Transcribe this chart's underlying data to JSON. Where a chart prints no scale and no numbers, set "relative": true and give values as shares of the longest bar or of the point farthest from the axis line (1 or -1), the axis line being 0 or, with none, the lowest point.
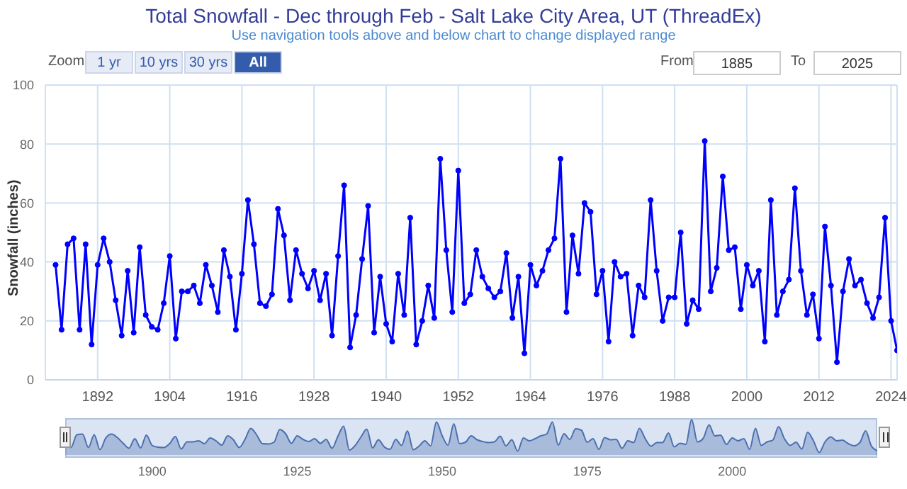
{
  "chart_data": [
    {
      "type": "line",
      "title": "Total Snowfall - Dec through Feb - Salt Lake City Area, UT (ThreadEx)",
      "subtitle": "Use navigation tools above and below chart to change displayed range",
      "ylabel": "Snowfall (inches)",
      "annotations": [
        "Zoom",
        "1 yr",
        "10 yrs",
        "30 yrs",
        "All",
        "From",
        "1885",
        "To",
        "2025"
      ],
      "x": [
        1885,
        1886,
        1887,
        1888,
        1889,
        1890,
        1891,
        1892,
        1893,
        1894,
        1895,
        1896,
        1897,
        1898,
        1899,
        1900,
        1901,
        1902,
        1903,
        1904,
        1905,
        1906,
        1907,
        1908,
        1909,
        1910,
        1911,
        1912,
        1913,
        1914,
        1915,
        1916,
        1917,
        1918,
        1919,
        1920,
        1921,
        1922,
        1923,
        1924,
        1925,
        1926,
        1927,
        1928,
        1929,
        1930,
        1931,
        1932,
        1933,
        1934,
        1935,
        1936,
        1937,
        1938,
        1939,
        1940,
        1941,
        1942,
        1943,
        1944,
        1945,
        1946,
        1947,
        1948,
        1949,
        1950,
        1951,
        1952,
        1953,
        1954,
        1955,
        1956,
        1957,
        1958,
        1959,
        1960,
        1961,
        1962,
        1963,
        1964,
        1965,
        1966,
        1967,
        1968,
        1969,
        1970,
        1971,
        1972,
        1973,
        1974,
        1975,
        1976,
        1977,
        1978,
        1979,
        1980,
        1981,
        1982,
        1983,
        1984,
        1985,
        1986,
        1987,
        1988,
        1989,
        1990,
        1991,
        1992,
        1993,
        1994,
        1995,
        1996,
        1997,
        1998,
        1999,
        2000,
        2001,
        2002,
        2003,
        2004,
        2005,
        2006,
        2007,
        2008,
        2009,
        2010,
        2011,
        2012,
        2013,
        2014,
        2015,
        2016,
        2017,
        2018,
        2019,
        2020,
        2021,
        2022,
        2023,
        2024,
        2025
      ],
      "series": [
        {
          "color": "#0000ff",
          "values": [
            39,
            17,
            46,
            48,
            17,
            46,
            12,
            39,
            48,
            40,
            27,
            15,
            37,
            16,
            45,
            22,
            18,
            17,
            26,
            42,
            14,
            30,
            30,
            32,
            26,
            39,
            32,
            23,
            44,
            35,
            17,
            36,
            61,
            46,
            26,
            25,
            29,
            58,
            49,
            27,
            44,
            36,
            31,
            37,
            27,
            36,
            15,
            42,
            66,
            11,
            22,
            41,
            59,
            16,
            35,
            19,
            13,
            36,
            22,
            55,
            12,
            20,
            32,
            21,
            75,
            44,
            23,
            71,
            26,
            29,
            44,
            35,
            31,
            28,
            30,
            43,
            21,
            35,
            9,
            39,
            32,
            37,
            44,
            48,
            75,
            23,
            49,
            36,
            60,
            57,
            29,
            37,
            13,
            40,
            35,
            36,
            15,
            32,
            28,
            61,
            37,
            20,
            28,
            28,
            50,
            19,
            27,
            24,
            81,
            30,
            38,
            69,
            44,
            45,
            24,
            39,
            32,
            37,
            13,
            61,
            22,
            30,
            34,
            65,
            37,
            22,
            29,
            14,
            52,
            32,
            6,
            30,
            41,
            32,
            34,
            26,
            21,
            28,
            55,
            20,
            10
          ]
        }
      ],
      "xlim": [
        1883.3,
        2025
      ],
      "xticks": [
        1892,
        1904,
        1916,
        1928,
        1940,
        1952,
        1964,
        1976,
        1988,
        2000,
        2012,
        2024
      ],
      "ylim": [
        0,
        100
      ],
      "yticks": [
        0,
        20,
        40,
        60,
        80,
        100
      ],
      "grid": true,
      "marker": "circle",
      "line_style": "solid"
    },
    {
      "type": "area",
      "relative": true,
      "tick_labels": "x",
      "color": "#4a6fb0",
      "x": [
        1885,
        1886,
        1887,
        1888,
        1889,
        1890,
        1891,
        1892,
        1893,
        1894,
        1895,
        1896,
        1897,
        1898,
        1899,
        1900,
        1901,
        1902,
        1903,
        1904,
        1905,
        1906,
        1907,
        1908,
        1909,
        1910,
        1911,
        1912,
        1913,
        1914,
        1915,
        1916,
        1917,
        1918,
        1919,
        1920,
        1921,
        1922,
        1923,
        1924,
        1925,
        1926,
        1927,
        1928,
        1929,
        1930,
        1931,
        1932,
        1933,
        1934,
        1935,
        1936,
        1937,
        1938,
        1939,
        1940,
        1941,
        1942,
        1943,
        1944,
        1945,
        1946,
        1947,
        1948,
        1949,
        1950,
        1951,
        1952,
        1953,
        1954,
        1955,
        1956,
        1957,
        1958,
        1959,
        1960,
        1961,
        1962,
        1963,
        1964,
        1965,
        1966,
        1967,
        1968,
        1969,
        1970,
        1971,
        1972,
        1973,
        1974,
        1975,
        1976,
        1977,
        1978,
        1979,
        1980,
        1981,
        1982,
        1983,
        1984,
        1985,
        1986,
        1987,
        1988,
        1989,
        1990,
        1991,
        1992,
        1993,
        1994,
        1995,
        1996,
        1997,
        1998,
        1999,
        2000,
        2001,
        2002,
        2003,
        2004,
        2005,
        2006,
        2007,
        2008,
        2009,
        2010,
        2011,
        2012,
        2013,
        2014,
        2015,
        2016,
        2017,
        2018,
        2019,
        2020,
        2021,
        2022,
        2023,
        2024,
        2025
      ],
      "values": [
        0.48,
        0.21,
        0.57,
        0.59,
        0.21,
        0.57,
        0.15,
        0.48,
        0.59,
        0.49,
        0.33,
        0.19,
        0.46,
        0.2,
        0.56,
        0.27,
        0.22,
        0.21,
        0.32,
        0.52,
        0.17,
        0.37,
        0.37,
        0.4,
        0.32,
        0.48,
        0.4,
        0.28,
        0.54,
        0.43,
        0.21,
        0.44,
        0.75,
        0.57,
        0.32,
        0.31,
        0.36,
        0.72,
        0.6,
        0.33,
        0.54,
        0.44,
        0.38,
        0.46,
        0.33,
        0.44,
        0.19,
        0.52,
        0.81,
        0.14,
        0.27,
        0.51,
        0.73,
        0.2,
        0.43,
        0.23,
        0.16,
        0.44,
        0.27,
        0.68,
        0.15,
        0.25,
        0.4,
        0.26,
        0.93,
        0.54,
        0.28,
        0.88,
        0.32,
        0.36,
        0.54,
        0.43,
        0.38,
        0.35,
        0.37,
        0.53,
        0.26,
        0.43,
        0.11,
        0.48,
        0.4,
        0.46,
        0.54,
        0.59,
        0.93,
        0.28,
        0.6,
        0.44,
        0.74,
        0.7,
        0.36,
        0.46,
        0.16,
        0.49,
        0.43,
        0.44,
        0.19,
        0.4,
        0.35,
        0.75,
        0.46,
        0.25,
        0.35,
        0.35,
        0.62,
        0.23,
        0.33,
        0.3,
        1,
        0.37,
        0.47,
        0.85,
        0.54,
        0.56,
        0.3,
        0.48,
        0.4,
        0.46,
        0.16,
        0.75,
        0.27,
        0.37,
        0.42,
        0.8,
        0.46,
        0.27,
        0.36,
        0.17,
        0.64,
        0.4,
        0.07,
        0.37,
        0.51,
        0.4,
        0.42,
        0.32,
        0.26,
        0.35,
        0.68,
        0.25,
        0.12
      ],
      "xlim": [
        1885,
        2025
      ],
      "xticks": [
        1900,
        1925,
        1950,
        1975,
        2000
      ]
    }
  ]
}
